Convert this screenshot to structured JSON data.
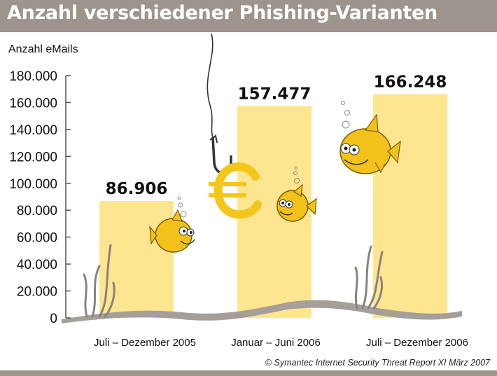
{
  "header": {
    "title": "Anzahl verschiedener Phishing-Varianten"
  },
  "footer": {
    "source": "© Symantec Internet Security Threat Report XI März 2007"
  },
  "colors": {
    "title_bar": "#9e948e",
    "bar": "#fde68f",
    "fish": "#f2c21a",
    "seabed": "#a59e99",
    "euro": "#f3c61c"
  },
  "icons": [
    "fishing-hook-icon",
    "euro-sign-icon",
    "fish-icon",
    "seaweed-icon",
    "bubble-icon"
  ],
  "chart_data": {
    "type": "bar",
    "title": "Anzahl verschiedener Phishing-Varianten",
    "ylabel": "Anzahl eMails",
    "xlabel": "",
    "categories": [
      "Juli – Dezember 2005",
      "Januar – Juni 2006",
      "Juli – Dezember 2006"
    ],
    "values": [
      86906,
      157477,
      166248
    ],
    "value_labels": [
      "86.906",
      "157.477",
      "166.248"
    ],
    "ylim": [
      0,
      180000
    ],
    "yticks": [
      0,
      20000,
      40000,
      60000,
      80000,
      100000,
      120000,
      140000,
      160000,
      180000
    ],
    "ytick_labels": [
      "0",
      "20.000",
      "40.000",
      "60.000",
      "80.000",
      "100.000",
      "120.000",
      "140.000",
      "160.000",
      "180.000"
    ],
    "grid": false,
    "legend": "none"
  }
}
